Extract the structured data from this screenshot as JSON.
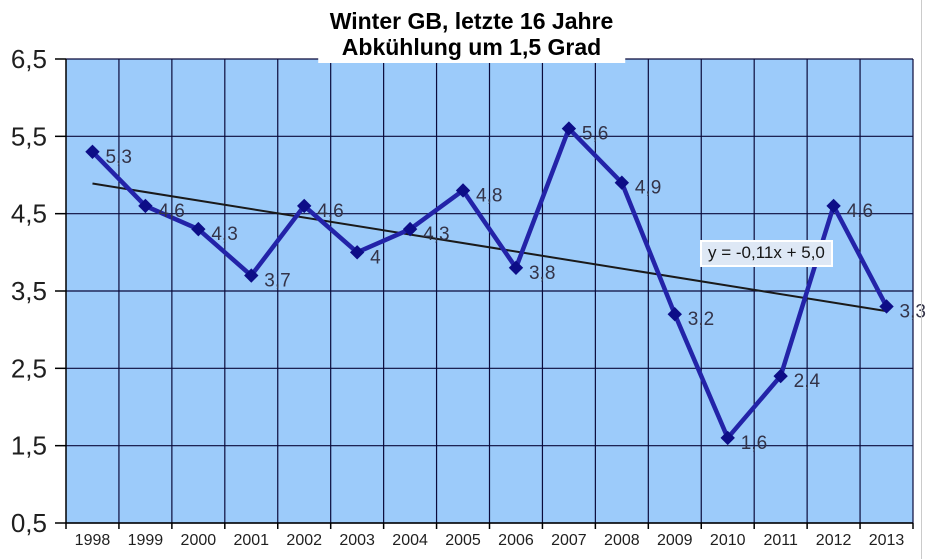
{
  "title": {
    "line1": "Winter GB, letzte 16 Jahre",
    "line2": "Abkühlung um 1,5 Grad"
  },
  "chart_data": {
    "type": "line",
    "title": "Winter GB, letzte 16 Jahre",
    "subtitle": "Abkühlung um 1,5 Grad",
    "categories": [
      "1998",
      "1999",
      "2000",
      "2001",
      "2002",
      "2003",
      "2004",
      "2005",
      "2006",
      "2007",
      "2008",
      "2009",
      "2010",
      "2011",
      "2012",
      "2013"
    ],
    "series": [
      {
        "name": "Winter GB",
        "values": [
          5.3,
          4.6,
          4.3,
          3.7,
          4.6,
          4.0,
          4.3,
          4.8,
          3.8,
          5.6,
          4.9,
          3.2,
          1.6,
          2.4,
          4.6,
          3.3
        ],
        "point_labels": [
          "5,3",
          "4,6",
          "4,3",
          "3,7",
          "4,6",
          "4",
          "4,3",
          "4,8",
          "3,8",
          "5,6",
          "4,9",
          "3,2",
          "1,6",
          "2,4",
          "4,6",
          "3,3"
        ]
      }
    ],
    "trendline": {
      "equation_label": "y = -0,11x + 5,0",
      "slope": -0.11,
      "intercept": 5.0
    },
    "y_axis": {
      "min": 0.5,
      "max": 6.5,
      "step": 1.0,
      "tick_labels": [
        "6,5",
        "5,5",
        "4,5",
        "3,5",
        "2,5",
        "1,5",
        "0,5"
      ]
    },
    "xlabel": "",
    "ylabel": "",
    "grid": true,
    "legend": "none",
    "colors": {
      "plot_bg": "#9CCBFA",
      "grid": "#0B0B3B",
      "axis": "#000000",
      "series_line": "#2323A8",
      "marker": "#0D0D87",
      "point_label": "#333348",
      "axis_text": "#1F1F1F",
      "trend": "#1A1A1A",
      "equation_bg": "#DEE8F5",
      "title_bg": "#FFFFFF"
    }
  }
}
